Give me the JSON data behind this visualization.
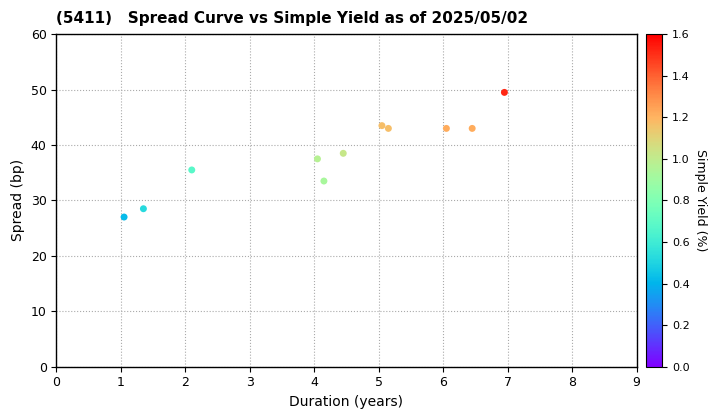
{
  "title": "(5411)   Spread Curve vs Simple Yield as of 2025/05/02",
  "xlabel": "Duration (years)",
  "ylabel": "Spread (bp)",
  "colorbar_label": "Simple Yield (%)",
  "xlim": [
    0,
    9
  ],
  "ylim": [
    0,
    60
  ],
  "xticks": [
    0,
    1,
    2,
    3,
    4,
    5,
    6,
    7,
    8,
    9
  ],
  "yticks": [
    0,
    10,
    20,
    30,
    40,
    50,
    60
  ],
  "colorbar_ticks": [
    0.0,
    0.2,
    0.4,
    0.6,
    0.8,
    1.0,
    1.2,
    1.4,
    1.6
  ],
  "cmap_min": 0.0,
  "cmap_max": 1.6,
  "points": [
    {
      "duration": 1.05,
      "spread": 27.0,
      "simple_yield": 0.42
    },
    {
      "duration": 1.35,
      "spread": 28.5,
      "simple_yield": 0.52
    },
    {
      "duration": 2.1,
      "spread": 35.5,
      "simple_yield": 0.68
    },
    {
      "duration": 4.05,
      "spread": 37.5,
      "simple_yield": 0.97
    },
    {
      "duration": 4.15,
      "spread": 33.5,
      "simple_yield": 0.93
    },
    {
      "duration": 4.45,
      "spread": 38.5,
      "simple_yield": 1.02
    },
    {
      "duration": 5.05,
      "spread": 43.5,
      "simple_yield": 1.17
    },
    {
      "duration": 5.15,
      "spread": 43.0,
      "simple_yield": 1.17
    },
    {
      "duration": 6.05,
      "spread": 43.0,
      "simple_yield": 1.22
    },
    {
      "duration": 6.45,
      "spread": 43.0,
      "simple_yield": 1.22
    },
    {
      "duration": 6.95,
      "spread": 49.5,
      "simple_yield": 1.52
    }
  ],
  "marker_size": 25,
  "background_color": "#ffffff",
  "grid_color": "#aaaaaa",
  "title_fontsize": 11,
  "axis_label_fontsize": 10,
  "tick_fontsize": 9,
  "colorbar_tick_fontsize": 8,
  "colorbar_label_fontsize": 9
}
